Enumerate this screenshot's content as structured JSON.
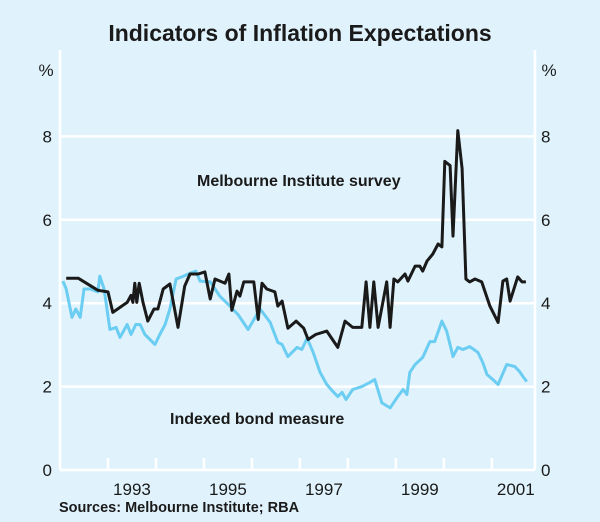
{
  "chart_data": {
    "type": "line",
    "title": "Indicators of Inflation Expectations",
    "ylabel_left": "%",
    "ylabel_right": "%",
    "xlim": [
      1992.0,
      2001.9
    ],
    "ylim": [
      0,
      10
    ],
    "yticks": [
      0,
      2,
      4,
      6,
      8
    ],
    "xtick_years": [
      1992,
      1993,
      1994,
      1995,
      1996,
      1997,
      1998,
      1999,
      2000,
      2001
    ],
    "xtick_labels": [
      "1993",
      "1995",
      "1997",
      "1999",
      "2001"
    ],
    "grid": true,
    "source": "Sources: Melbourne Institute; RBA",
    "series": [
      {
        "name": "Melbourne Institute survey",
        "color": "#1a1a1a",
        "points": [
          [
            1992.13,
            4.6
          ],
          [
            1992.38,
            4.6
          ],
          [
            1992.79,
            4.31
          ],
          [
            1993.0,
            4.27
          ],
          [
            1993.1,
            3.78
          ],
          [
            1993.4,
            4.02
          ],
          [
            1993.48,
            4.19
          ],
          [
            1993.52,
            4.02
          ],
          [
            1993.56,
            4.48
          ],
          [
            1993.6,
            4.02
          ],
          [
            1993.65,
            4.48
          ],
          [
            1993.73,
            4.02
          ],
          [
            1993.83,
            3.57
          ],
          [
            1993.96,
            3.86
          ],
          [
            1994.04,
            3.86
          ],
          [
            1994.15,
            4.34
          ],
          [
            1994.29,
            4.46
          ],
          [
            1994.46,
            3.42
          ],
          [
            1994.6,
            4.41
          ],
          [
            1994.71,
            4.7
          ],
          [
            1994.88,
            4.7
          ],
          [
            1995.02,
            4.75
          ],
          [
            1995.13,
            4.1
          ],
          [
            1995.23,
            4.58
          ],
          [
            1995.44,
            4.48
          ],
          [
            1995.52,
            4.7
          ],
          [
            1995.58,
            3.83
          ],
          [
            1995.69,
            4.29
          ],
          [
            1995.75,
            4.17
          ],
          [
            1995.83,
            4.51
          ],
          [
            1996.04,
            4.51
          ],
          [
            1996.13,
            3.61
          ],
          [
            1996.21,
            4.48
          ],
          [
            1996.31,
            4.34
          ],
          [
            1996.48,
            4.27
          ],
          [
            1996.54,
            3.93
          ],
          [
            1996.63,
            4.05
          ],
          [
            1996.75,
            3.4
          ],
          [
            1996.92,
            3.57
          ],
          [
            1997.08,
            3.4
          ],
          [
            1997.17,
            3.13
          ],
          [
            1997.33,
            3.25
          ],
          [
            1997.56,
            3.33
          ],
          [
            1997.79,
            2.94
          ],
          [
            1997.94,
            3.57
          ],
          [
            1998.1,
            3.42
          ],
          [
            1998.29,
            3.42
          ],
          [
            1998.38,
            4.51
          ],
          [
            1998.46,
            3.42
          ],
          [
            1998.54,
            4.51
          ],
          [
            1998.63,
            3.42
          ],
          [
            1998.81,
            4.51
          ],
          [
            1998.88,
            3.42
          ],
          [
            1998.96,
            4.58
          ],
          [
            1999.04,
            4.51
          ],
          [
            1999.19,
            4.7
          ],
          [
            1999.25,
            4.53
          ],
          [
            1999.4,
            4.89
          ],
          [
            1999.5,
            4.89
          ],
          [
            1999.56,
            4.77
          ],
          [
            1999.65,
            5.01
          ],
          [
            1999.77,
            5.18
          ],
          [
            1999.88,
            5.42
          ],
          [
            1999.96,
            5.35
          ],
          [
            2000.02,
            7.4
          ],
          [
            2000.13,
            7.3
          ],
          [
            2000.19,
            5.61
          ],
          [
            2000.29,
            8.14
          ],
          [
            2000.38,
            7.23
          ],
          [
            2000.46,
            4.58
          ],
          [
            2000.54,
            4.51
          ],
          [
            2000.65,
            4.58
          ],
          [
            2000.79,
            4.51
          ],
          [
            2000.96,
            3.93
          ],
          [
            2001.13,
            3.54
          ],
          [
            2001.23,
            4.53
          ],
          [
            2001.31,
            4.58
          ],
          [
            2001.38,
            4.05
          ],
          [
            2001.54,
            4.63
          ],
          [
            2001.63,
            4.51
          ],
          [
            2001.71,
            4.51
          ]
        ]
      },
      {
        "name": "Indexed bond measure",
        "color": "#6ccdf2",
        "points": [
          [
            1992.06,
            4.53
          ],
          [
            1992.13,
            4.34
          ],
          [
            1992.25,
            3.66
          ],
          [
            1992.33,
            3.86
          ],
          [
            1992.42,
            3.66
          ],
          [
            1992.5,
            4.34
          ],
          [
            1992.63,
            4.34
          ],
          [
            1992.79,
            4.27
          ],
          [
            1992.83,
            4.65
          ],
          [
            1992.92,
            4.34
          ],
          [
            1993.04,
            3.37
          ],
          [
            1993.17,
            3.42
          ],
          [
            1993.25,
            3.18
          ],
          [
            1993.4,
            3.49
          ],
          [
            1993.48,
            3.25
          ],
          [
            1993.58,
            3.49
          ],
          [
            1993.67,
            3.49
          ],
          [
            1993.77,
            3.25
          ],
          [
            1993.98,
            3.01
          ],
          [
            1994.08,
            3.25
          ],
          [
            1994.19,
            3.49
          ],
          [
            1994.29,
            3.86
          ],
          [
            1994.42,
            4.58
          ],
          [
            1994.54,
            4.63
          ],
          [
            1994.71,
            4.72
          ],
          [
            1994.83,
            4.77
          ],
          [
            1994.92,
            4.53
          ],
          [
            1995.13,
            4.51
          ],
          [
            1995.33,
            4.17
          ],
          [
            1995.54,
            3.93
          ],
          [
            1995.71,
            3.73
          ],
          [
            1995.92,
            3.37
          ],
          [
            1996.17,
            3.86
          ],
          [
            1996.38,
            3.54
          ],
          [
            1996.54,
            3.06
          ],
          [
            1996.63,
            3.01
          ],
          [
            1996.75,
            2.72
          ],
          [
            1996.94,
            2.94
          ],
          [
            1997.04,
            2.89
          ],
          [
            1997.15,
            3.16
          ],
          [
            1997.27,
            2.84
          ],
          [
            1997.42,
            2.34
          ],
          [
            1997.56,
            2.05
          ],
          [
            1997.69,
            1.88
          ],
          [
            1997.79,
            1.76
          ],
          [
            1997.88,
            1.86
          ],
          [
            1997.96,
            1.69
          ],
          [
            1998.1,
            1.93
          ],
          [
            1998.29,
            2.0
          ],
          [
            1998.46,
            2.1
          ],
          [
            1998.56,
            2.17
          ],
          [
            1998.71,
            1.61
          ],
          [
            1998.88,
            1.49
          ],
          [
            1999.02,
            1.73
          ],
          [
            1999.15,
            1.93
          ],
          [
            1999.23,
            1.81
          ],
          [
            1999.29,
            2.34
          ],
          [
            1999.4,
            2.53
          ],
          [
            1999.56,
            2.7
          ],
          [
            1999.71,
            3.08
          ],
          [
            1999.81,
            3.08
          ],
          [
            1999.96,
            3.57
          ],
          [
            2000.06,
            3.33
          ],
          [
            2000.19,
            2.72
          ],
          [
            2000.29,
            2.94
          ],
          [
            2000.4,
            2.89
          ],
          [
            2000.54,
            2.96
          ],
          [
            2000.71,
            2.82
          ],
          [
            2000.81,
            2.58
          ],
          [
            2000.9,
            2.29
          ],
          [
            2001.02,
            2.17
          ],
          [
            2001.13,
            2.05
          ],
          [
            2001.31,
            2.53
          ],
          [
            2001.48,
            2.48
          ],
          [
            2001.58,
            2.36
          ],
          [
            2001.65,
            2.24
          ],
          [
            2001.73,
            2.12
          ]
        ]
      }
    ],
    "annotations": [
      "Melbourne Institute survey",
      "Indexed bond measure"
    ]
  }
}
